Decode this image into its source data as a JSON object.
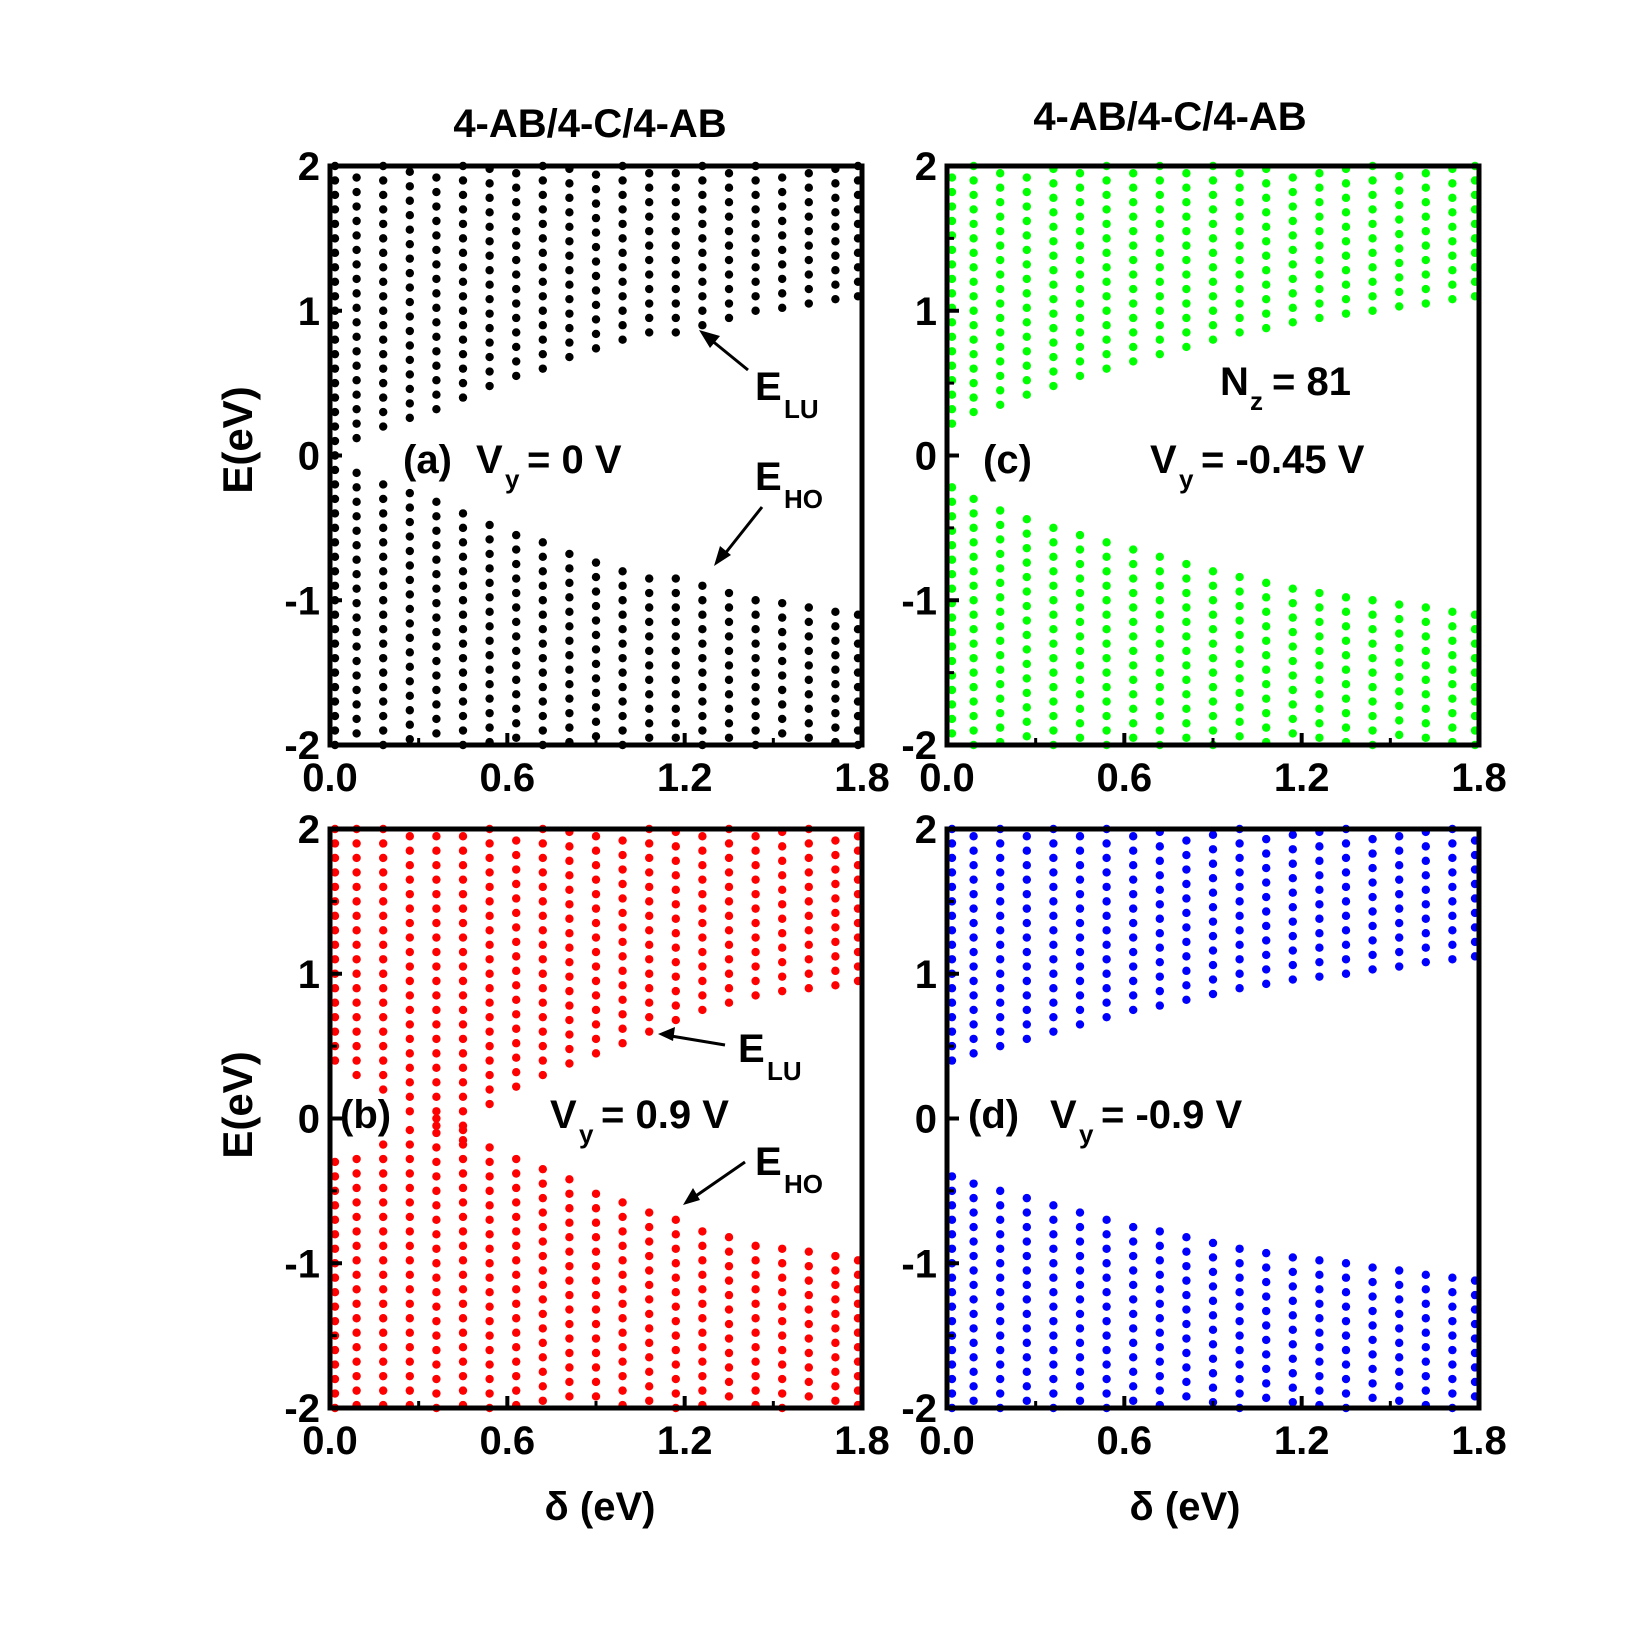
{
  "chart_data": [
    {
      "panel": "a",
      "type": "scatter",
      "title": "4-AB/4-C/4-AB",
      "ylabel": "E(eV)",
      "xlabel": "",
      "xlim": [
        0,
        1.8
      ],
      "ylim": [
        -2,
        2
      ],
      "xticks": [
        "0.0",
        "0.6",
        "1.2",
        "1.8"
      ],
      "yticks": [
        "-2",
        "-1",
        "0",
        "1",
        "2"
      ],
      "color": "#000000",
      "label": "(a)",
      "vy_prefix": "V",
      "vy_sub": "y",
      "vy_value": "= 0 V",
      "annotations": [
        {
          "main": "E",
          "sub": "LU"
        },
        {
          "main": "E",
          "sub": "HO"
        }
      ],
      "delta_values": [
        0.0,
        0.09,
        0.18,
        0.27,
        0.36,
        0.45,
        0.54,
        0.63,
        0.72,
        0.81,
        0.9,
        0.99,
        1.08,
        1.17,
        1.26,
        1.35,
        1.44,
        1.53,
        1.62,
        1.71,
        1.8
      ],
      "series": [
        {
          "name": "",
          "x": [
            0.0,
            0.09,
            0.18,
            0.27,
            0.36,
            0.45,
            0.54,
            0.63,
            0.72,
            0.81,
            0.9,
            0.99,
            1.08,
            1.17,
            1.26,
            1.35,
            1.44,
            1.53,
            1.62,
            1.71,
            1.8
          ],
          "E_LU": [
            0.0,
            0.12,
            0.2,
            0.26,
            0.32,
            0.4,
            0.48,
            0.55,
            0.6,
            0.68,
            0.74,
            0.8,
            0.85,
            0.85,
            0.9,
            0.95,
            1.0,
            1.02,
            1.05,
            1.08,
            1.1
          ],
          "E_HO": [
            0.0,
            -0.12,
            -0.2,
            -0.26,
            -0.32,
            -0.4,
            -0.48,
            -0.55,
            -0.6,
            -0.68,
            -0.74,
            -0.8,
            -0.85,
            -0.85,
            -0.9,
            -0.95,
            -1.0,
            -1.02,
            -1.05,
            -1.08,
            -1.1
          ]
        }
      ]
    },
    {
      "panel": "b",
      "type": "scatter",
      "title": "",
      "ylabel": "E(eV)",
      "xlabel": "δ (eV)",
      "xlim": [
        0,
        1.8
      ],
      "ylim": [
        -2,
        2
      ],
      "xticks": [
        "0.0",
        "0.6",
        "1.2",
        "1.8"
      ],
      "yticks": [
        "-2",
        "-1",
        "0",
        "1",
        "2"
      ],
      "color": "#ff0000",
      "label": "(b)",
      "vy_prefix": "V",
      "vy_sub": "y",
      "vy_value": "= 0.9 V",
      "annotations": [
        {
          "main": "E",
          "sub": "LU"
        },
        {
          "main": "E",
          "sub": "HO"
        }
      ],
      "delta_values": [
        0.0,
        0.09,
        0.18,
        0.27,
        0.36,
        0.45,
        0.54,
        0.63,
        0.72,
        0.81,
        0.9,
        0.99,
        1.08,
        1.17,
        1.26,
        1.35,
        1.44,
        1.53,
        1.62,
        1.71,
        1.8
      ],
      "series": [
        {
          "name": "",
          "x": [
            0.0,
            0.09,
            0.18,
            0.27,
            0.36,
            0.45,
            0.54,
            0.63,
            0.72,
            0.81,
            0.9,
            0.99,
            1.08,
            1.17,
            1.26,
            1.35,
            1.44,
            1.53,
            1.62,
            1.71,
            1.8
          ],
          "E_LU": [
            0.4,
            0.3,
            0.2,
            0.05,
            -0.05,
            -0.15,
            0.1,
            0.22,
            0.3,
            0.38,
            0.45,
            0.52,
            0.6,
            0.68,
            0.75,
            0.8,
            0.85,
            0.88,
            0.9,
            0.92,
            0.95
          ],
          "E_HO": [
            -0.3,
            -0.28,
            -0.18,
            -0.08,
            0.0,
            -0.08,
            -0.2,
            -0.28,
            -0.35,
            -0.42,
            -0.52,
            -0.58,
            -0.65,
            -0.7,
            -0.78,
            -0.82,
            -0.88,
            -0.9,
            -0.92,
            -0.95,
            -0.98
          ]
        }
      ]
    },
    {
      "panel": "c",
      "type": "scatter",
      "title": "4-AB/4-C/4-AB",
      "ylabel": "",
      "xlabel": "",
      "xlim": [
        0,
        1.8
      ],
      "ylim": [
        -2,
        2
      ],
      "xticks": [
        "0.0",
        "0.6",
        "1.2",
        "1.8"
      ],
      "yticks": [
        "-2",
        "-1",
        "0",
        "1",
        "2"
      ],
      "color": "#00ff00",
      "label": "(c)",
      "nz_prefix": "N",
      "nz_sub": "z",
      "nz_value": "= 81",
      "vy_prefix": "V",
      "vy_sub": "y",
      "vy_value": "= -0.45 V",
      "delta_values": [
        0.0,
        0.09,
        0.18,
        0.27,
        0.36,
        0.45,
        0.54,
        0.63,
        0.72,
        0.81,
        0.9,
        0.99,
        1.08,
        1.17,
        1.26,
        1.35,
        1.44,
        1.53,
        1.62,
        1.71,
        1.8
      ],
      "series": [
        {
          "name": "",
          "x": [
            0.0,
            0.09,
            0.18,
            0.27,
            0.36,
            0.45,
            0.54,
            0.63,
            0.72,
            0.81,
            0.9,
            0.99,
            1.08,
            1.17,
            1.26,
            1.35,
            1.44,
            1.53,
            1.62,
            1.71,
            1.8
          ],
          "E_LU": [
            0.22,
            0.3,
            0.35,
            0.42,
            0.48,
            0.55,
            0.6,
            0.65,
            0.7,
            0.75,
            0.8,
            0.85,
            0.88,
            0.92,
            0.95,
            0.98,
            1.0,
            1.03,
            1.05,
            1.08,
            1.1
          ],
          "E_HO": [
            -0.22,
            -0.3,
            -0.38,
            -0.44,
            -0.5,
            -0.55,
            -0.6,
            -0.65,
            -0.7,
            -0.75,
            -0.8,
            -0.84,
            -0.88,
            -0.92,
            -0.95,
            -0.98,
            -1.0,
            -1.03,
            -1.05,
            -1.08,
            -1.1
          ]
        }
      ]
    },
    {
      "panel": "d",
      "type": "scatter",
      "title": "",
      "ylabel": "",
      "xlabel": "δ (eV)",
      "xlim": [
        0,
        1.8
      ],
      "ylim": [
        -2,
        2
      ],
      "xticks": [
        "0.0",
        "0.6",
        "1.2",
        "1.8"
      ],
      "yticks": [
        "-2",
        "-1",
        "0",
        "1",
        "2"
      ],
      "color": "#0000ff",
      "label": "(d)",
      "vy_prefix": "V",
      "vy_sub": "y",
      "vy_value": "= -0.9 V",
      "delta_values": [
        0.0,
        0.09,
        0.18,
        0.27,
        0.36,
        0.45,
        0.54,
        0.63,
        0.72,
        0.81,
        0.9,
        0.99,
        1.08,
        1.17,
        1.26,
        1.35,
        1.44,
        1.53,
        1.62,
        1.71,
        1.8
      ],
      "series": [
        {
          "name": "",
          "x": [
            0.0,
            0.09,
            0.18,
            0.27,
            0.36,
            0.45,
            0.54,
            0.63,
            0.72,
            0.81,
            0.9,
            0.99,
            1.08,
            1.17,
            1.26,
            1.35,
            1.44,
            1.53,
            1.62,
            1.71,
            1.8
          ],
          "E_LU": [
            0.4,
            0.45,
            0.5,
            0.55,
            0.6,
            0.65,
            0.7,
            0.75,
            0.78,
            0.82,
            0.86,
            0.9,
            0.93,
            0.96,
            0.98,
            1.0,
            1.03,
            1.05,
            1.08,
            1.1,
            1.12
          ],
          "E_HO": [
            -0.4,
            -0.45,
            -0.5,
            -0.55,
            -0.6,
            -0.65,
            -0.7,
            -0.75,
            -0.78,
            -0.82,
            -0.86,
            -0.9,
            -0.93,
            -0.96,
            -0.98,
            -1.0,
            -1.03,
            -1.05,
            -1.08,
            -1.1,
            -1.12
          ]
        }
      ]
    }
  ]
}
